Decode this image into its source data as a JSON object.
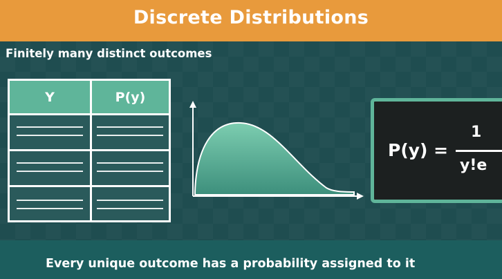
{
  "title": "Discrete Distributions",
  "subtitle": "Finitely many distinct outcomes",
  "table": {
    "headers": [
      "Y",
      "P(y)"
    ],
    "row_count": 3
  },
  "formula": {
    "lhs": "P(y) =",
    "numerator": "1",
    "denominator": "y!e"
  },
  "caption": "Every unique outcome has a probability assigned to it",
  "colors": {
    "title_bar": "#e89a3c",
    "board": "#1f4d50",
    "accent_green": "#5fb59a",
    "formula_bg": "#1c2020",
    "bottom_bar": "#1c5e5e"
  },
  "icons": [
    "axis-arrow-icon"
  ]
}
